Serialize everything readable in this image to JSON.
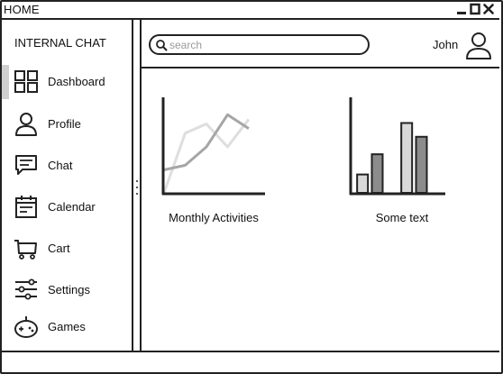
{
  "window": {
    "title": "HOME"
  },
  "sidebar": {
    "header": "INTERNAL CHAT",
    "items": [
      {
        "label": "Dashboard",
        "icon": "dashboard-icon",
        "active": true
      },
      {
        "label": "Profile",
        "icon": "user-icon",
        "active": false
      },
      {
        "label": "Chat",
        "icon": "chat-icon",
        "active": false
      },
      {
        "label": "Calendar",
        "icon": "calendar-icon",
        "active": false
      },
      {
        "label": "Cart",
        "icon": "cart-icon",
        "active": false
      },
      {
        "label": "Settings",
        "icon": "sliders-icon",
        "active": false
      },
      {
        "label": "Games",
        "icon": "gamepad-icon",
        "active": false
      }
    ]
  },
  "header": {
    "search": {
      "placeholder": "search",
      "value": ""
    },
    "user": {
      "name": "John"
    }
  },
  "widgets": [
    {
      "label": "Monthly Activities"
    },
    {
      "label": "Some text"
    }
  ],
  "chart_data": [
    {
      "type": "line",
      "title": "",
      "xlabel": "",
      "ylabel": "",
      "x": [
        0,
        1,
        2,
        3,
        4
      ],
      "series": [
        {
          "color": "#a6a6a6",
          "values": [
            2.5,
            3,
            5,
            8.5,
            7
          ]
        },
        {
          "color": "#dedede",
          "values": [
            0,
            6.5,
            7.5,
            5,
            8
          ]
        }
      ],
      "xlim": [
        0,
        4.6
      ],
      "ylim": [
        0,
        10
      ],
      "grid": false
    },
    {
      "type": "bar",
      "title": "",
      "xlabel": "",
      "ylabel": "",
      "categories": [
        "",
        "",
        "",
        "",
        "",
        ""
      ],
      "values": [
        2,
        4.2,
        0,
        7.6,
        6.1,
        0
      ],
      "bar_colors": [
        "#d9d9d9",
        "#8c8c8c",
        "#ffffff",
        "#d9d9d9",
        "#8c8c8c",
        "#ffffff"
      ],
      "ylim": [
        0,
        10
      ],
      "grid": false
    }
  ]
}
